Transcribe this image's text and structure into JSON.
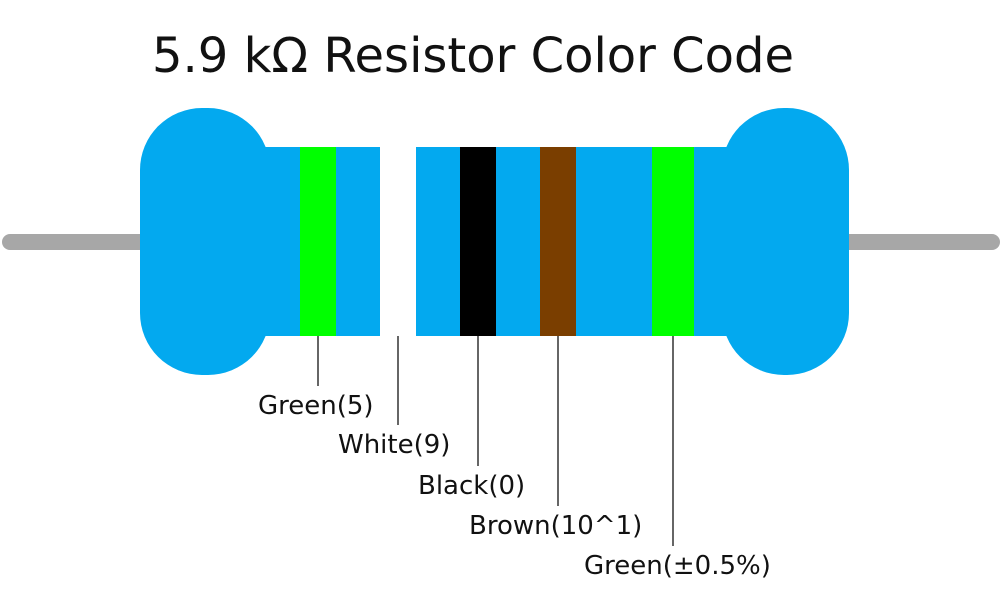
{
  "title": "5.9 kΩ Resistor Color Code",
  "colors": {
    "body": "#03a9ef",
    "lead": "#a7a7a7",
    "leader_line": "#333333"
  },
  "bands": [
    {
      "name": "green",
      "color": "#00ff00",
      "label": "Green(5)"
    },
    {
      "name": "white",
      "color": "#ffffff",
      "label": "White(9)"
    },
    {
      "name": "black",
      "color": "#000000",
      "label": "Black(0)"
    },
    {
      "name": "brown",
      "color": "#7a3e00",
      "label": "Brown(10^1)"
    },
    {
      "name": "green-tolerance",
      "color": "#00ff00",
      "label": "Green(±0.5%)"
    }
  ]
}
